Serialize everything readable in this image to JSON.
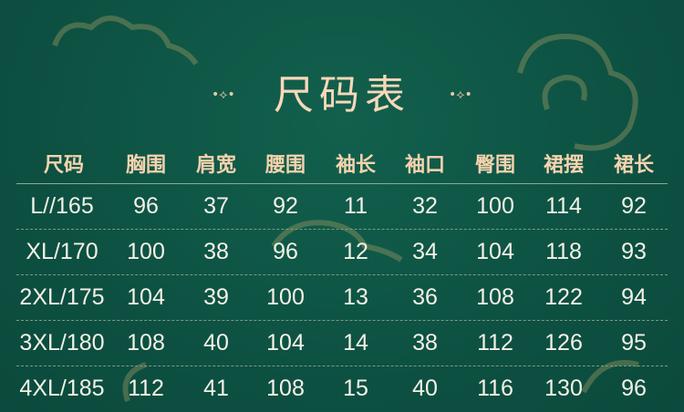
{
  "title": "尺码表",
  "colors": {
    "background": "#0e5444",
    "header_text": "#f6d3ae",
    "value_text": "#f4f1e6"
  },
  "table": {
    "headers": [
      "尺码",
      "胸围",
      "肩宽",
      "腰围",
      "袖长",
      "袖口",
      "臀围",
      "裙摆",
      "裙长"
    ],
    "rows": [
      [
        "L//165",
        "96",
        "37",
        "92",
        "11",
        "32",
        "100",
        "114",
        "92"
      ],
      [
        "XL/170",
        "100",
        "38",
        "96",
        "12",
        "34",
        "104",
        "118",
        "93"
      ],
      [
        "2XL/175",
        "104",
        "39",
        "100",
        "13",
        "36",
        "108",
        "122",
        "94"
      ],
      [
        "3XL/180",
        "108",
        "40",
        "104",
        "14",
        "38",
        "112",
        "126",
        "95"
      ],
      [
        "4XL/185",
        "112",
        "41",
        "108",
        "15",
        "40",
        "116",
        "130",
        "96"
      ]
    ]
  }
}
